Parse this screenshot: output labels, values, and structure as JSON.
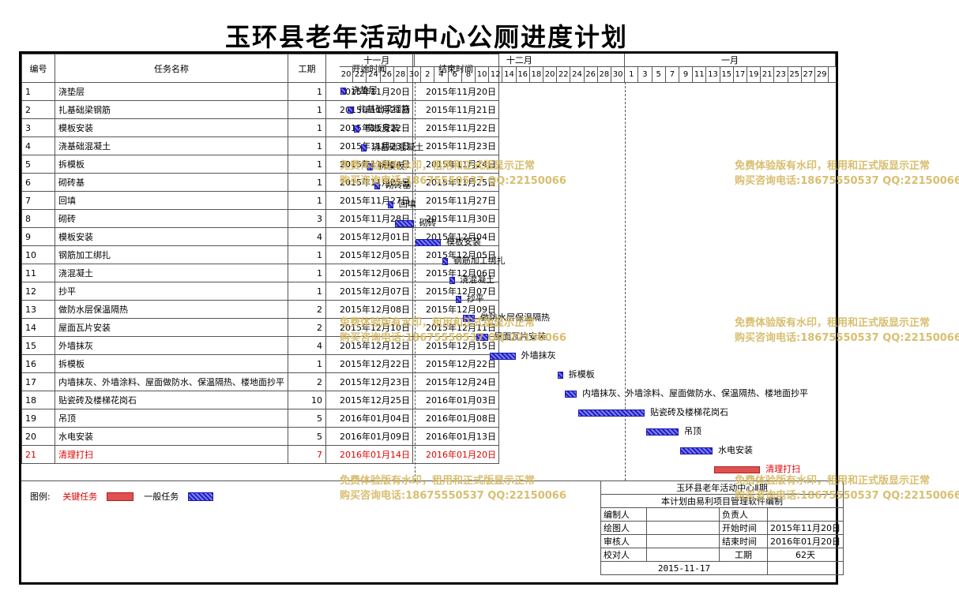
{
  "title": "玉环县老年活动中心公厕进度计划",
  "columns": {
    "no": "编号",
    "name": "任务名称",
    "dur": "工期",
    "start": "开始时间",
    "end": "结束时间"
  },
  "months": [
    "十一月",
    "十二月",
    "一月"
  ],
  "days": [
    "20",
    "22",
    "24",
    "26",
    "28",
    "30",
    "2",
    "4",
    "6",
    "8",
    "10",
    "12",
    "14",
    "16",
    "18",
    "20",
    "22",
    "24",
    "26",
    "28",
    "30",
    "1",
    "3",
    "5",
    "7",
    "9",
    "11",
    "13",
    "15",
    "17",
    "19",
    "21",
    "23",
    "25",
    "27",
    "29"
  ],
  "tasks": [
    {
      "no": "1",
      "name": "浇垫层",
      "dur": "1",
      "start": "2015年11月20日",
      "end": "2015年11月20日",
      "critical": false
    },
    {
      "no": "2",
      "name": "扎基础梁钢筋",
      "dur": "1",
      "start": "2015年11月21日",
      "end": "2015年11月21日",
      "critical": false
    },
    {
      "no": "3",
      "name": "模板安装",
      "dur": "1",
      "start": "2015年11月22日",
      "end": "2015年11月22日",
      "critical": false
    },
    {
      "no": "4",
      "name": "浇基础混凝土",
      "dur": "1",
      "start": "2015年11月23日",
      "end": "2015年11月23日",
      "critical": false
    },
    {
      "no": "5",
      "name": "拆模板",
      "dur": "1",
      "start": "2015年11月24日",
      "end": "2015年11月24日",
      "critical": false
    },
    {
      "no": "6",
      "name": "砌砖基",
      "dur": "1",
      "start": "2015年11月25日",
      "end": "2015年11月25日",
      "critical": false
    },
    {
      "no": "7",
      "name": "回填",
      "dur": "1",
      "start": "2015年11月27日",
      "end": "2015年11月27日",
      "critical": false
    },
    {
      "no": "8",
      "name": "砌砖",
      "dur": "3",
      "start": "2015年11月28日",
      "end": "2015年11月30日",
      "critical": false
    },
    {
      "no": "9",
      "name": "模板安装",
      "dur": "4",
      "start": "2015年12月01日",
      "end": "2015年12月04日",
      "critical": false
    },
    {
      "no": "10",
      "name": "钢筋加工绑扎",
      "dur": "1",
      "start": "2015年12月05日",
      "end": "2015年12月05日",
      "critical": false
    },
    {
      "no": "11",
      "name": "浇混凝土",
      "dur": "1",
      "start": "2015年12月06日",
      "end": "2015年12月06日",
      "critical": false
    },
    {
      "no": "12",
      "name": "抄平",
      "dur": "1",
      "start": "2015年12月07日",
      "end": "2015年12月07日",
      "critical": false
    },
    {
      "no": "13",
      "name": "做防水层保温隔热",
      "dur": "2",
      "start": "2015年12月08日",
      "end": "2015年12月09日",
      "critical": false
    },
    {
      "no": "14",
      "name": "屋面瓦片安装",
      "dur": "2",
      "start": "2015年12月10日",
      "end": "2015年12月11日",
      "critical": false
    },
    {
      "no": "15",
      "name": "外墙抹灰",
      "dur": "4",
      "start": "2015年12月12日",
      "end": "2015年12月15日",
      "critical": false
    },
    {
      "no": "16",
      "name": "拆模板",
      "dur": "1",
      "start": "2015年12月22日",
      "end": "2015年12月22日",
      "critical": false
    },
    {
      "no": "17",
      "name": "内墙抹灰、外墙涂料、屋面做防水、保温隔热、楼地面抄平",
      "dur": "2",
      "start": "2015年12月23日",
      "end": "2015年12月24日",
      "critical": false
    },
    {
      "no": "18",
      "name": "贴瓷砖及楼梯花岗石",
      "dur": "10",
      "start": "2015年12月25日",
      "end": "2016年01月03日",
      "critical": false
    },
    {
      "no": "19",
      "name": "吊顶",
      "dur": "5",
      "start": "2016年01月04日",
      "end": "2016年01月08日",
      "critical": false
    },
    {
      "no": "20",
      "name": "水电安装",
      "dur": "5",
      "start": "2016年01月09日",
      "end": "2016年01月13日",
      "critical": false
    },
    {
      "no": "21",
      "name": "清理打扫",
      "dur": "7",
      "start": "2016年01月14日",
      "end": "2016年01月20日",
      "critical": true
    }
  ],
  "legend": {
    "label": "图例:",
    "critical": "关键任务",
    "normal": "一般任务"
  },
  "info": {
    "project": "玉环县老年活动中心Ⅱ期",
    "note": "本计划由易利项目管理软件编制",
    "compiler": "编制人",
    "owner": "负责人",
    "drawer": "绘图人",
    "start_label": "开始时间",
    "start": "2015年11月20日",
    "reviewer": "审核人",
    "end_label": "结束时间",
    "end": "2016年01月20日",
    "checker": "校对人",
    "dur_label": "工期",
    "dur": "62天",
    "date": "2015-11-17"
  },
  "watermark": {
    "line1": "免费体验版有水印，租用和正式版显示正常",
    "line2": "购买咨询电话:18675550537 QQ:22150066"
  },
  "colors": {
    "normal_bar": "#2020c0",
    "critical_bar": "#e05050",
    "critical_text": "#e00000",
    "watermark": "#d4b860"
  }
}
